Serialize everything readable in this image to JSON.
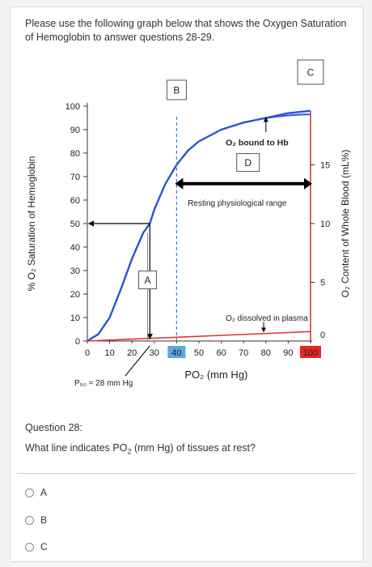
{
  "instructions": "Please use the following graph below that shows the Oxygen Saturation of Hemoglobin to answer questions 28-29.",
  "chart_data": {
    "type": "line",
    "ylabel": "% O₂ Saturation of Hemoglobin",
    "xlabel": "PO₂ (mm Hg)",
    "y2label": "O₂ Content of Whole Blood (mL%)",
    "x_ticks": [
      "0",
      "10",
      "20",
      "30",
      "40",
      "50",
      "60",
      "70",
      "80",
      "90",
      "100"
    ],
    "y_ticks": [
      "0",
      "10",
      "20",
      "30",
      "40",
      "50",
      "60",
      "70",
      "80",
      "90",
      "100"
    ],
    "y2_ticks": [
      "0",
      "5",
      "10",
      "15"
    ],
    "xlim": [
      0,
      100
    ],
    "ylim": [
      0,
      100
    ],
    "series": [
      {
        "x": [
          0,
          5,
          10,
          15,
          20,
          25,
          28,
          30,
          35,
          40,
          45,
          50,
          60,
          70,
          80,
          90,
          100
        ],
        "values": [
          0,
          3,
          10,
          22,
          35,
          46,
          50,
          56,
          67,
          75,
          81,
          85,
          90,
          93,
          95,
          97,
          98
        ]
      },
      {
        "x": [
          0,
          100
        ],
        "values": [
          0,
          4
        ]
      }
    ],
    "annotations": {
      "bound": "O₂ bound to Hb",
      "resting": "Resting physiological range",
      "dissolved": "O₂ dissolved in plasma",
      "p50": "P₅₀ = 28 mm Hg",
      "box_a": "A",
      "box_b": "B",
      "box_c": "C",
      "box_d": "D"
    },
    "highlight_colors": {
      "x40": "#5ba7dd",
      "x100": "#e8271f",
      "curve": "#2a55d6",
      "dashed": "#3b7fd0"
    }
  },
  "question": {
    "title": "Question 28:",
    "text_before": "What line indicates PO",
    "text_sub": "2",
    "text_after": " (mm Hg) of tissues at rest?"
  },
  "options": [
    {
      "label": "A"
    },
    {
      "label": "B"
    },
    {
      "label": "C"
    }
  ]
}
